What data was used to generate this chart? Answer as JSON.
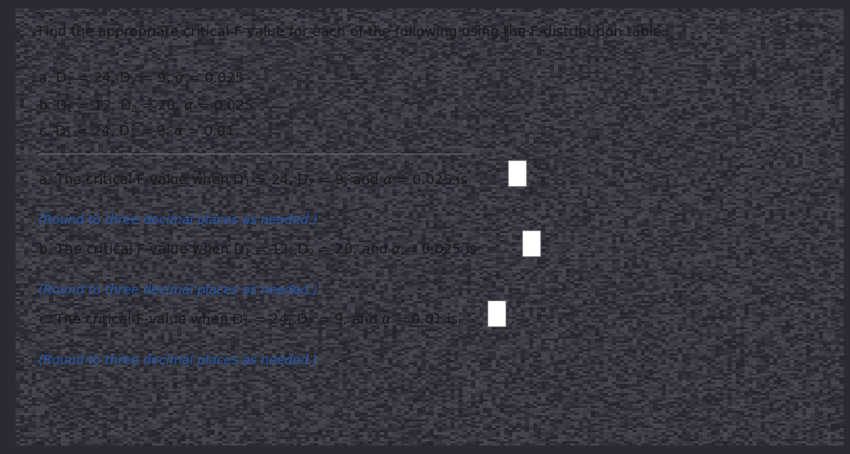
{
  "bg_color": "#2a2a35",
  "panel_color": "#cfc9bc",
  "text_color": "#1a1a1a",
  "teal_color": "#2255aa",
  "figwidth": 12.0,
  "figheight": 6.41,
  "dpi": 100,
  "title": "Find the appropriate critical F-value for each of the following using the F-distribution table.",
  "problem_lines_tex": [
    "a. $\\mathrm{D_1}$ = 24, $\\mathrm{D_2}$ = 9, $\\alpha$ = 0.025",
    "b. $\\mathrm{D_1}$ = 12, $\\mathrm{D_2}$ = 20, $\\alpha$ = 0.025",
    "c. $\\mathrm{D_1}$ = 24, $\\mathrm{D_2}$ = 9, $\\alpha$ = 0.01"
  ],
  "answer_lines_tex": [
    "a. The critical F-value when $\\mathrm{D_1}$ = 24, $\\mathrm{D_2}$ = 9, and $\\alpha$ = 0.025 is",
    "b. The critical F-value when $\\mathrm{D_1}$ = 12, $\\mathrm{D_2}$ = 20, and $\\alpha$ = 0.025 is",
    "c. The critical F-value when $\\mathrm{D_1}$ = 24, $\\mathrm{D_2}$ = 9, and $\\alpha$ = 0.01 is"
  ],
  "round_note": "(Round to three decimal places as needed.)"
}
